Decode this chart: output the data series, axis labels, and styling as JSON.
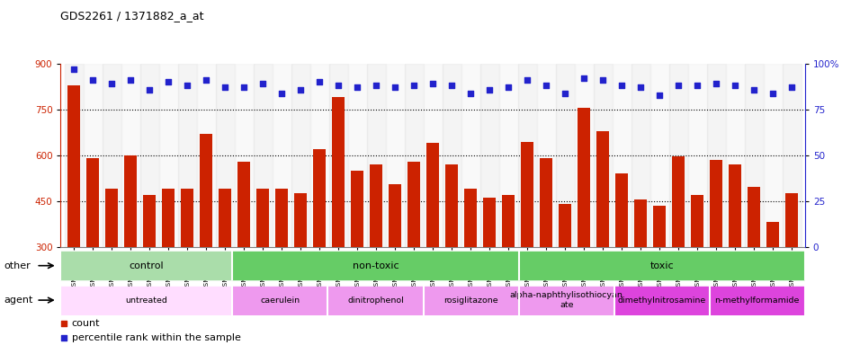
{
  "title": "GDS2261 / 1371882_a_at",
  "samples": [
    "GSM127079",
    "GSM127080",
    "GSM127081",
    "GSM127082",
    "GSM127083",
    "GSM127084",
    "GSM127085",
    "GSM127086",
    "GSM127087",
    "GSM127054",
    "GSM127055",
    "GSM127056",
    "GSM127057",
    "GSM127058",
    "GSM127064",
    "GSM127065",
    "GSM127066",
    "GSM127067",
    "GSM127068",
    "GSM127074",
    "GSM127075",
    "GSM127076",
    "GSM127077",
    "GSM127078",
    "GSM127049",
    "GSM127050",
    "GSM127051",
    "GSM127052",
    "GSM127053",
    "GSM127059",
    "GSM127060",
    "GSM127061",
    "GSM127062",
    "GSM127063",
    "GSM127069",
    "GSM127070",
    "GSM127071",
    "GSM127072",
    "GSM127073"
  ],
  "bar_values": [
    830,
    590,
    490,
    600,
    470,
    490,
    490,
    670,
    490,
    580,
    490,
    490,
    475,
    620,
    790,
    550,
    570,
    505,
    580,
    640,
    570,
    490,
    460,
    470,
    645,
    590,
    440,
    755,
    680,
    540,
    455,
    435,
    595,
    470,
    585,
    570,
    495,
    380,
    475
  ],
  "pct_values": [
    97,
    91,
    89,
    91,
    86,
    90,
    88,
    91,
    87,
    87,
    89,
    84,
    86,
    90,
    88,
    87,
    88,
    87,
    88,
    89,
    88,
    84,
    86,
    87,
    91,
    88,
    84,
    92,
    91,
    88,
    87,
    83,
    88,
    88,
    89,
    88,
    86,
    84,
    87
  ],
  "bar_color": "#cc2200",
  "dot_color": "#2222cc",
  "ylim_left": [
    300,
    900
  ],
  "ylim_right": [
    0,
    100
  ],
  "yticks_left": [
    300,
    450,
    600,
    750,
    900
  ],
  "yticks_right": [
    0,
    25,
    50,
    75,
    100
  ],
  "grid_lines": [
    450,
    600,
    750
  ],
  "groups_other": [
    {
      "label": "control",
      "start": 0,
      "end": 9,
      "color": "#aaddaa"
    },
    {
      "label": "non-toxic",
      "start": 9,
      "end": 24,
      "color": "#66cc66"
    },
    {
      "label": "toxic",
      "start": 24,
      "end": 39,
      "color": "#66cc66"
    }
  ],
  "other_row_label": "other",
  "agent_row_label": "agent",
  "agent_groups": [
    {
      "label": "untreated",
      "start": 0,
      "end": 9,
      "color": "#ffddff"
    },
    {
      "label": "caerulein",
      "start": 9,
      "end": 14,
      "color": "#ee99ee"
    },
    {
      "label": "dinitrophenol",
      "start": 14,
      "end": 19,
      "color": "#ee99ee"
    },
    {
      "label": "rosiglitazone",
      "start": 19,
      "end": 24,
      "color": "#ee99ee"
    },
    {
      "label": "alpha-naphthylisothiocyan\nate",
      "start": 24,
      "end": 29,
      "color": "#ee99ee"
    },
    {
      "label": "dimethylnitrosamine",
      "start": 29,
      "end": 34,
      "color": "#dd44dd"
    },
    {
      "label": "n-methylformamide",
      "start": 34,
      "end": 39,
      "color": "#dd44dd"
    }
  ],
  "legend_count_color": "#cc2200",
  "legend_pct_color": "#2222cc",
  "legend_count_label": "count",
  "legend_pct_label": "percentile rank within the sample",
  "xtick_bg_even": "#e0e0e0",
  "xtick_bg_odd": "#f0f0f0"
}
